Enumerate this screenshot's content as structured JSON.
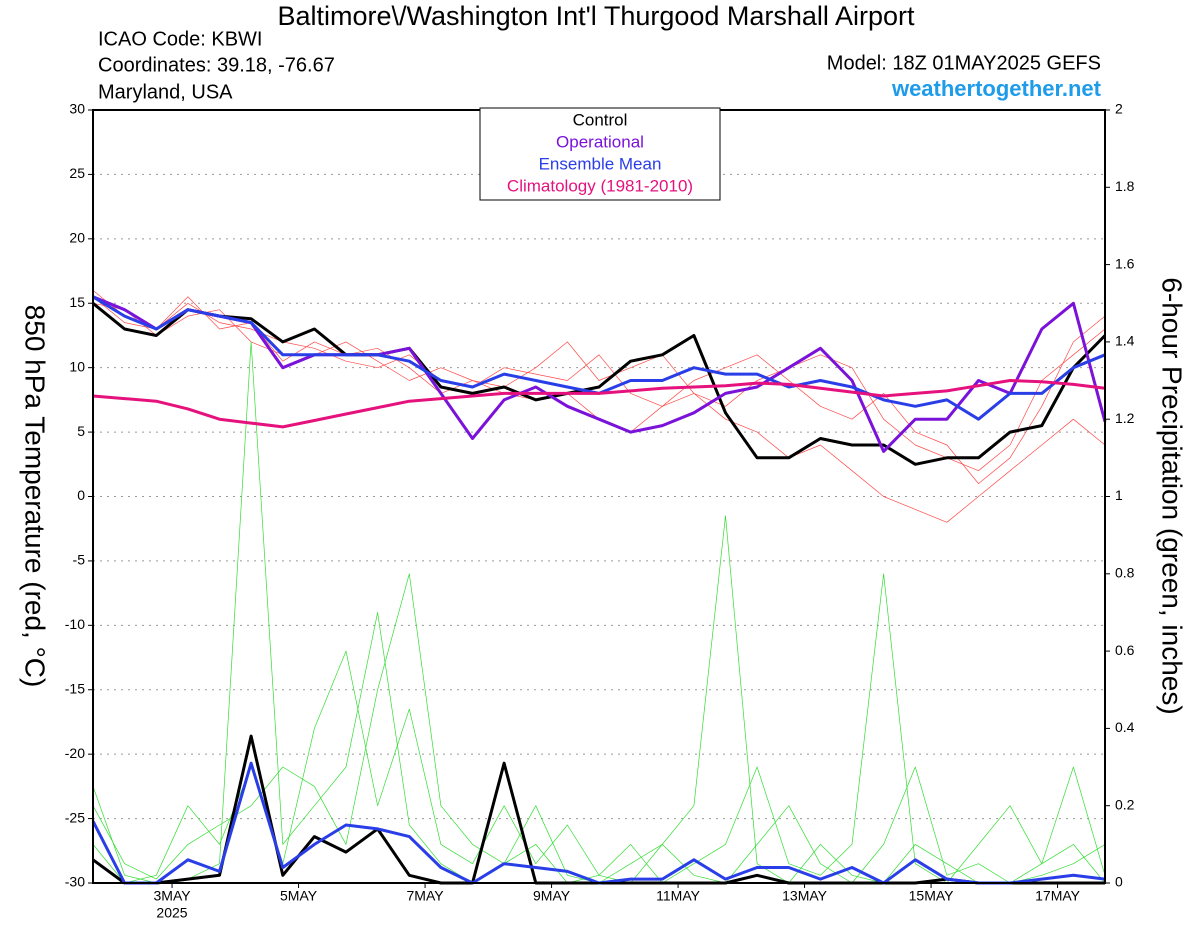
{
  "chart_data": {
    "type": "line",
    "title": "Baltimore\\/Washington Int'l Thurgood Marshall Airport",
    "header_left": [
      "ICAO Code: KBWI",
      "Coordinates: 39.18, -76.67",
      "Maryland, USA"
    ],
    "header_right": [
      "Model: 18Z 01MAY2025 GEFS",
      "weathertogether.net"
    ],
    "ylabel": "850 hPa Temperature (red, °C)",
    "y2label": "6-hour Precipitation (green, inches)",
    "year_label": "2025",
    "x": [
      1.75,
      2.25,
      2.75,
      3.25,
      3.75,
      4.25,
      4.75,
      5.25,
      5.75,
      6.25,
      6.75,
      7.25,
      7.75,
      8.25,
      8.75,
      9.25,
      9.75,
      10.25,
      10.75,
      11.25,
      11.75,
      12.25,
      12.75,
      13.25,
      13.75,
      14.25,
      14.75,
      15.25,
      15.75,
      16.25,
      16.75,
      17.25,
      17.75
    ],
    "xlim": [
      1.75,
      17.75
    ],
    "xticks": [
      {
        "value": 3,
        "label": "3MAY"
      },
      {
        "value": 5,
        "label": "5MAY"
      },
      {
        "value": 7,
        "label": "7MAY"
      },
      {
        "value": 9,
        "label": "9MAY"
      },
      {
        "value": 11,
        "label": "11MAY"
      },
      {
        "value": 13,
        "label": "13MAY"
      },
      {
        "value": 15,
        "label": "15MAY"
      },
      {
        "value": 17,
        "label": "17MAY"
      }
    ],
    "ylim": [
      -30,
      30
    ],
    "yticks": [
      -30,
      -25,
      -20,
      -15,
      -10,
      -5,
      0,
      5,
      10,
      15,
      20,
      25,
      30
    ],
    "y2lim": [
      0,
      2
    ],
    "y2ticks": [
      0,
      0.2,
      0.4,
      0.6,
      0.8,
      1,
      1.2,
      1.4,
      1.6,
      1.8,
      2
    ],
    "grid": true,
    "series": [
      {
        "color": "#ff4a4a",
        "values": [
          16,
          14,
          13,
          15,
          13.5,
          13,
          12,
          11.5,
          10.5,
          10,
          11,
          9,
          8.5,
          10,
          9.5,
          9,
          11,
          8,
          7,
          9,
          10,
          11,
          9,
          7,
          6,
          8,
          5,
          4,
          1,
          3,
          7,
          12,
          14
        ]
      },
      {
        "color": "#ff4a4a",
        "values": [
          15,
          14.5,
          12.5,
          14,
          14.5,
          12,
          11,
          11,
          12,
          10.5,
          9,
          10,
          9,
          8,
          7.5,
          8,
          6,
          5,
          7,
          8,
          7,
          9,
          10,
          11,
          10,
          6,
          4,
          3,
          2,
          4,
          9,
          11,
          13
        ]
      },
      {
        "color": "#ff4a4a",
        "values": [
          15.5,
          13.5,
          13,
          15.5,
          13,
          13.5,
          10.5,
          12,
          11,
          11.5,
          10,
          8,
          9,
          8.5,
          10,
          12,
          9,
          10,
          11,
          8,
          6,
          5,
          3,
          4,
          2,
          0,
          -1,
          -2,
          0,
          2,
          4,
          6,
          4
        ]
      },
      {
        "color": "#33dd33",
        "axis": "y2",
        "values": [
          0.25,
          0.02,
          0,
          0.01,
          0.05,
          1.4,
          0.1,
          0.2,
          0.3,
          0.7,
          0.15,
          0.05,
          0,
          0.05,
          0.1,
          0,
          0.02,
          0,
          0.1,
          0.2,
          0.95,
          0.05,
          0,
          0.1,
          0.02,
          0,
          0.1,
          0.05,
          0,
          0,
          0.05,
          0.1,
          0
        ]
      },
      {
        "color": "#33dd33",
        "axis": "y2",
        "values": [
          0.1,
          0,
          0.02,
          0.2,
          0.1,
          0.3,
          0.05,
          0.4,
          0.6,
          0.2,
          0.45,
          0.1,
          0.05,
          0.2,
          0.05,
          0.15,
          0.02,
          0.1,
          0,
          0.05,
          0.1,
          0.3,
          0.05,
          0.02,
          0.1,
          0.8,
          0.05,
          0,
          0.1,
          0.2,
          0.05,
          0.3,
          0.02
        ]
      },
      {
        "color": "#33dd33",
        "axis": "y2",
        "values": [
          0.2,
          0.05,
          0.01,
          0.1,
          0.15,
          0.2,
          0.3,
          0.25,
          0.1,
          0.5,
          0.8,
          0.2,
          0.1,
          0.05,
          0.2,
          0.02,
          0,
          0.05,
          0.1,
          0.02,
          0,
          0.1,
          0.2,
          0.05,
          0,
          0.1,
          0.3,
          0.02,
          0.05,
          0,
          0.02,
          0.05,
          0.1
        ]
      },
      {
        "color": "#000000",
        "axis": "y2",
        "linewidth": 3,
        "values": [
          0.06,
          0,
          0,
          0.01,
          0.02,
          0.38,
          0.02,
          0.12,
          0.08,
          0.14,
          0.02,
          0,
          0,
          0.31,
          0,
          0,
          0,
          0,
          0,
          0,
          0,
          0.02,
          0,
          0,
          0,
          0,
          0,
          0.01,
          0,
          0,
          0,
          0,
          0
        ]
      },
      {
        "color": "#2a3ee8",
        "axis": "y2",
        "linewidth": 3,
        "values": [
          0.16,
          0,
          0,
          0.06,
          0.03,
          0.31,
          0.04,
          0.1,
          0.15,
          0.14,
          0.12,
          0.04,
          0,
          0.05,
          0.04,
          0.03,
          0,
          0.01,
          0.01,
          0.06,
          0.01,
          0.04,
          0.04,
          0.01,
          0.04,
          0,
          0.06,
          0.01,
          0,
          0,
          0.01,
          0.02,
          0.01
        ]
      },
      {
        "name": "Control",
        "color": "#000000",
        "linewidth": 3,
        "values": [
          15,
          13,
          12.5,
          14.5,
          14,
          13.8,
          12,
          13,
          11,
          11,
          11.5,
          8.5,
          8,
          8.5,
          7.5,
          8,
          8.5,
          10.5,
          11,
          12.5,
          6.5,
          3,
          3,
          4.5,
          4,
          4,
          2.5,
          3,
          3,
          5,
          5.5,
          10,
          12.5
        ]
      },
      {
        "name": "Operational",
        "color": "#7b12d9",
        "linewidth": 3,
        "values": [
          15.5,
          14.5,
          13,
          14.5,
          14,
          13.5,
          10,
          11,
          11,
          11,
          11.5,
          8,
          4.5,
          7.5,
          8.5,
          7,
          6,
          5,
          5.5,
          6.5,
          8,
          8.5,
          10,
          11.5,
          9,
          3.5,
          6,
          6,
          9,
          8,
          13,
          15,
          5.8
        ]
      },
      {
        "name": "Ensemble Mean",
        "color": "#2a3ee8",
        "linewidth": 3,
        "values": [
          15.5,
          14,
          13,
          14.5,
          14,
          13.5,
          11,
          11,
          11,
          11,
          10.5,
          9,
          8.5,
          9.5,
          9,
          8.5,
          8,
          9,
          9,
          10,
          9.5,
          9.5,
          8.5,
          9,
          8.5,
          7.5,
          7,
          7.5,
          6,
          8,
          8,
          10,
          11
        ]
      },
      {
        "name": "Climatology (1981-2010)",
        "color": "#e5127d",
        "linewidth": 3,
        "values": [
          7.8,
          7.6,
          7.4,
          6.8,
          6.0,
          5.7,
          5.4,
          5.9,
          6.4,
          6.9,
          7.4,
          7.6,
          7.8,
          8.0,
          8.0,
          8.0,
          8.0,
          8.2,
          8.4,
          8.5,
          8.6,
          8.8,
          8.7,
          8.4,
          8.1,
          7.8,
          8.0,
          8.2,
          8.6,
          9.0,
          8.9,
          8.7,
          8.4
        ]
      }
    ]
  }
}
